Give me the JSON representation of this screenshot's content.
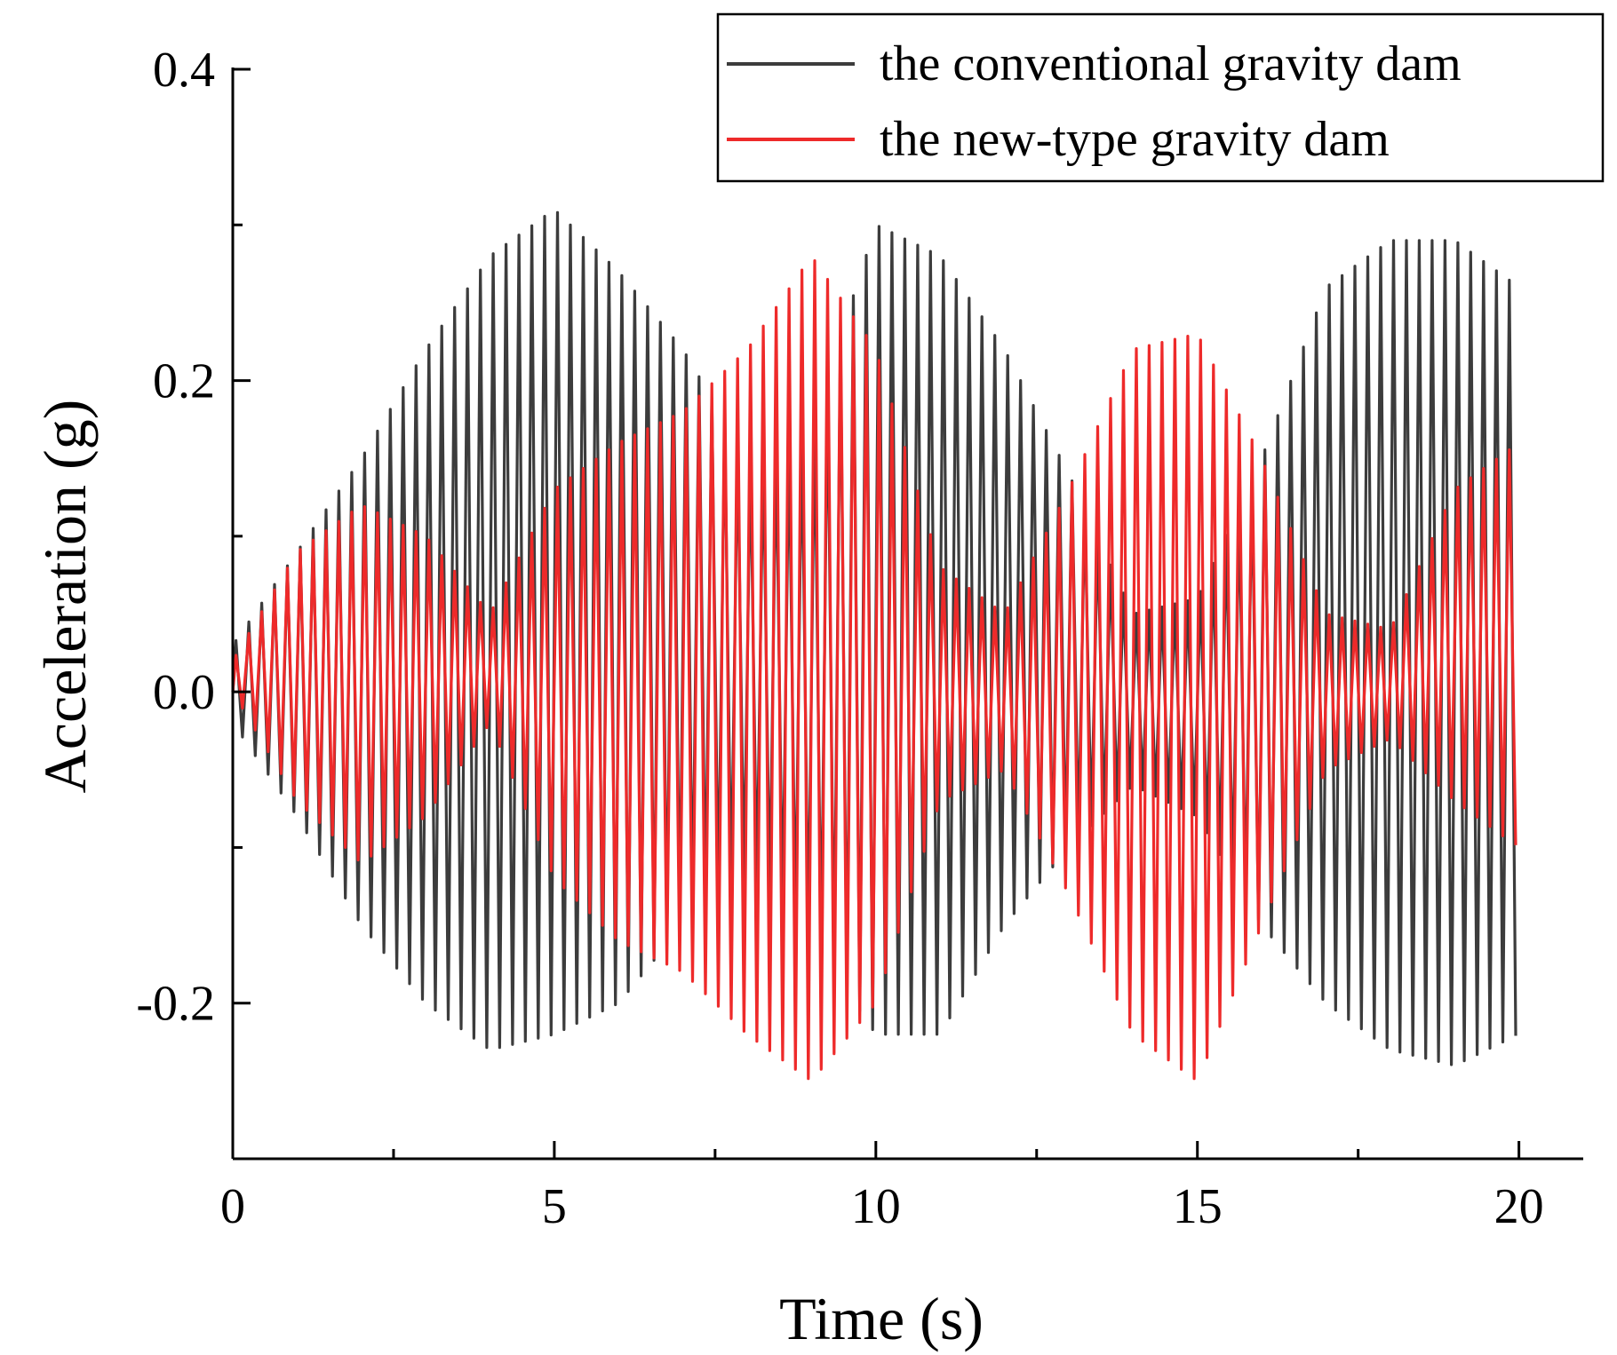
{
  "chart_data": {
    "type": "line",
    "title": "",
    "xlabel": "Time (s)",
    "ylabel": "Acceleration (g)",
    "xlim": [
      0,
      21
    ],
    "ylim": [
      -0.3,
      0.4
    ],
    "x_ticks": [
      0,
      5,
      10,
      15,
      20
    ],
    "x_tick_labels": [
      "0",
      "5",
      "10",
      "15",
      "20"
    ],
    "y_ticks": [
      -0.2,
      0.0,
      0.2,
      0.4
    ],
    "y_tick_labels": [
      "-0.2",
      "0.0",
      "0.2",
      "0.4"
    ],
    "legend_position": "top-right",
    "grid": false,
    "series": [
      {
        "name": "the conventional gravity dam",
        "color": "#3c3c3c",
        "t_end": 20,
        "oscillation_frequency_hz": 5,
        "envelope_times": [
          0,
          1,
          2,
          3,
          4,
          5,
          6,
          7,
          8,
          9,
          10,
          11,
          12,
          13,
          14,
          15,
          16,
          17,
          18,
          19,
          20
        ],
        "upper_envelope": [
          0.03,
          0.09,
          0.15,
          0.22,
          0.28,
          0.31,
          0.27,
          0.22,
          0.15,
          0.17,
          0.3,
          0.28,
          0.22,
          0.14,
          0.05,
          0.06,
          0.15,
          0.26,
          0.29,
          0.29,
          0.26
        ],
        "lower_envelope": [
          -0.02,
          -0.08,
          -0.15,
          -0.2,
          -0.23,
          -0.22,
          -0.2,
          -0.15,
          -0.12,
          -0.16,
          -0.22,
          -0.22,
          -0.15,
          -0.1,
          -0.06,
          -0.08,
          -0.15,
          -0.2,
          -0.23,
          -0.24,
          -0.22
        ]
      },
      {
        "name": "the new-type gravity dam",
        "color": "#ee2a2a",
        "t_end": 20,
        "oscillation_frequency_hz": 5,
        "envelope_times": [
          0,
          1,
          2,
          3,
          4,
          5,
          6,
          7,
          8,
          9,
          10,
          11,
          12,
          13,
          14,
          15,
          16,
          17,
          18,
          19,
          20
        ],
        "upper_envelope": [
          0.02,
          0.09,
          0.12,
          0.1,
          0.05,
          0.13,
          0.16,
          0.18,
          0.22,
          0.28,
          0.22,
          0.08,
          0.05,
          0.13,
          0.22,
          0.23,
          0.15,
          0.05,
          0.04,
          0.13,
          0.16
        ],
        "lower_envelope": [
          0.0,
          -0.07,
          -0.11,
          -0.08,
          -0.02,
          -0.12,
          -0.16,
          -0.18,
          -0.22,
          -0.25,
          -0.2,
          -0.07,
          -0.05,
          -0.13,
          -0.22,
          -0.25,
          -0.15,
          -0.05,
          -0.03,
          -0.07,
          -0.1
        ]
      }
    ]
  }
}
